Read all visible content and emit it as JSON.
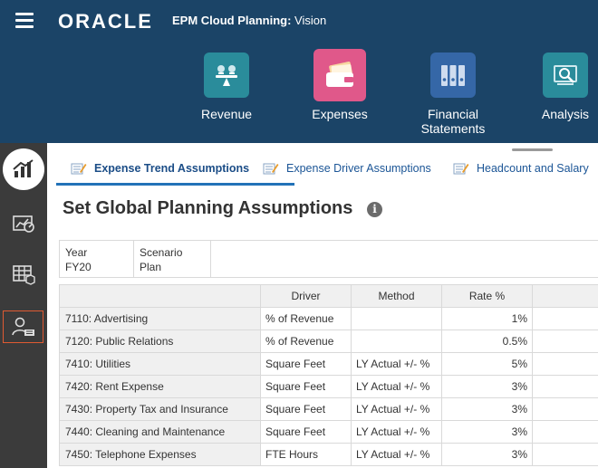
{
  "header": {
    "brand": "ORACLE",
    "app_title_bold": "EPM Cloud Planning:",
    "app_title_rest": " Vision",
    "cards": [
      {
        "label": "Revenue",
        "icon": "scale-icon",
        "color": "#2a8c9b"
      },
      {
        "label": "Expenses",
        "icon": "wallet-icon",
        "color": "#e0588a"
      },
      {
        "label": "Financial Statements",
        "icon": "binders-icon",
        "color": "#3567a7"
      },
      {
        "label": "Analysis",
        "icon": "analysis-icon",
        "color": "#2a8c9b"
      }
    ]
  },
  "rail": [
    "dashboard-home-icon",
    "chart-gauge-icon",
    "grid-cube-icon",
    "user-settings-icon"
  ],
  "tabs": [
    {
      "label": "Expense Trend Assumptions",
      "active": true
    },
    {
      "label": "Expense Driver Assumptions",
      "active": false
    },
    {
      "label": "Headcount and Salary",
      "active": false
    }
  ],
  "page_title": "Set Global Planning Assumptions",
  "info_icon": "i",
  "pov": [
    {
      "dimension": "Year",
      "member": "FY20"
    },
    {
      "dimension": "Scenario",
      "member": "Plan"
    }
  ],
  "grid": {
    "columns": [
      "",
      "Driver",
      "Method",
      "Rate %",
      ""
    ],
    "rows": [
      {
        "account": "7110: Advertising",
        "driver": "% of Revenue",
        "method": "",
        "rate": "1%"
      },
      {
        "account": "7120: Public Relations",
        "driver": "% of Revenue",
        "method": "",
        "rate": "0.5%"
      },
      {
        "account": "7410: Utilities",
        "driver": "Square Feet",
        "method": "LY Actual +/- %",
        "rate": "5%"
      },
      {
        "account": "7420: Rent Expense",
        "driver": "Square Feet",
        "method": "LY Actual +/- %",
        "rate": "3%"
      },
      {
        "account": "7430: Property Tax and Insurance",
        "driver": "Square Feet",
        "method": "LY Actual +/- %",
        "rate": "3%"
      },
      {
        "account": "7440: Cleaning and Maintenance",
        "driver": "Square Feet",
        "method": "LY Actual +/- %",
        "rate": "3%"
      },
      {
        "account": "7450: Telephone Expenses",
        "driver": "FTE Hours",
        "method": "LY Actual +/- %",
        "rate": "3%"
      }
    ]
  },
  "colors": {
    "header_bg": "#1b4467",
    "rail_bg": "#3b3b3b",
    "tab_text": "#1b5596",
    "tab_underline": "#2272b8",
    "rail_selected_border": "#e05a32"
  }
}
